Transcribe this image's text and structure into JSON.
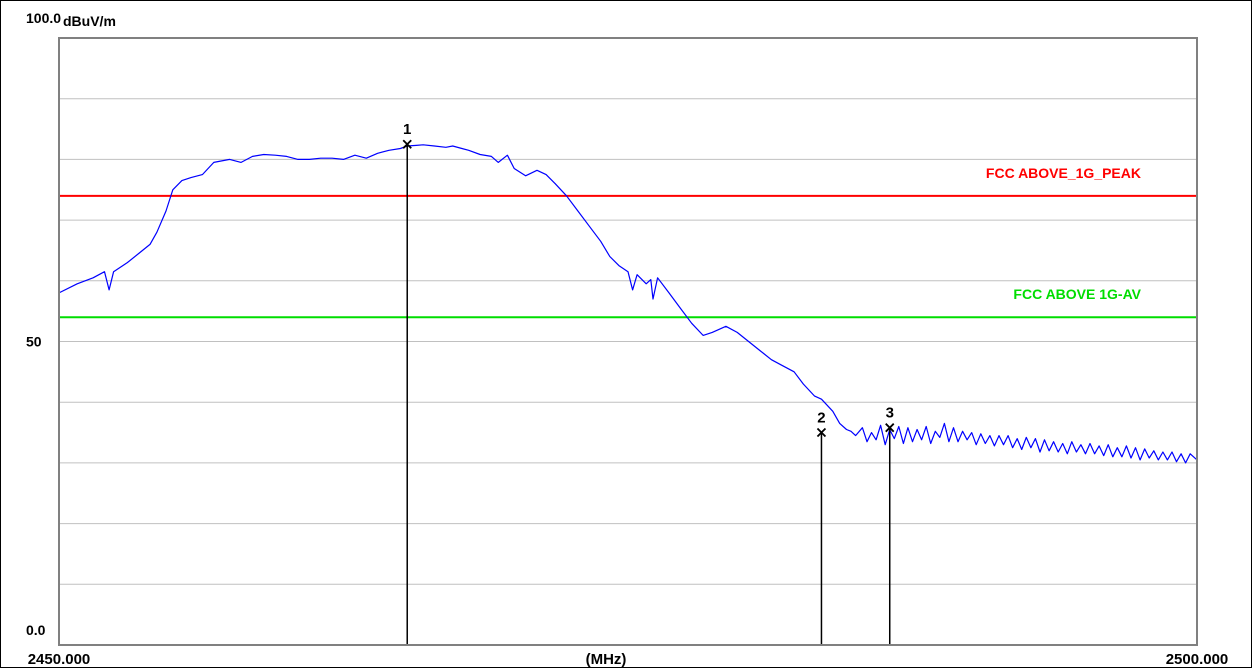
{
  "chart_data": {
    "type": "line",
    "title": "",
    "y_unit": "dBuV/m",
    "x_unit": "(MHz)",
    "xlim": [
      2450.0,
      2500.0
    ],
    "ylim": [
      0.0,
      100.0
    ],
    "y_tick_labels": [
      {
        "value": 100,
        "label": "100.0"
      },
      {
        "value": 50,
        "label": "50"
      },
      {
        "value": 0,
        "label": "0.0"
      }
    ],
    "x_tick_labels": [
      {
        "value": 2450.0,
        "label": "2450.000"
      },
      {
        "value": 2500.0,
        "label": "2500.000"
      }
    ],
    "grid": true,
    "grid_y_step": 10,
    "series": [
      {
        "color": "#0000ff",
        "points": [
          [
            2450.0,
            58
          ],
          [
            2450.8,
            59.5
          ],
          [
            2451.5,
            60.5
          ],
          [
            2452.0,
            61.5
          ],
          [
            2452.2,
            58.5
          ],
          [
            2452.4,
            61.5
          ],
          [
            2453.0,
            63
          ],
          [
            2453.5,
            64.5
          ],
          [
            2454.0,
            66
          ],
          [
            2454.3,
            68
          ],
          [
            2454.7,
            71.5
          ],
          [
            2455.0,
            75
          ],
          [
            2455.4,
            76.5
          ],
          [
            2455.8,
            77
          ],
          [
            2456.3,
            77.5
          ],
          [
            2456.8,
            79.5
          ],
          [
            2457.5,
            80
          ],
          [
            2458.0,
            79.5
          ],
          [
            2458.5,
            80.5
          ],
          [
            2459.0,
            80.8
          ],
          [
            2459.5,
            80.7
          ],
          [
            2460.0,
            80.5
          ],
          [
            2460.5,
            80
          ],
          [
            2461.0,
            80
          ],
          [
            2461.5,
            80.2
          ],
          [
            2462.0,
            80.2
          ],
          [
            2462.5,
            80
          ],
          [
            2463.0,
            80.7
          ],
          [
            2463.5,
            80.2
          ],
          [
            2464.0,
            81
          ],
          [
            2464.5,
            81.5
          ],
          [
            2465.0,
            81.8
          ],
          [
            2465.3,
            82.2
          ],
          [
            2465.7,
            82.3
          ],
          [
            2466.0,
            82.4
          ],
          [
            2466.5,
            82.2
          ],
          [
            2467.0,
            82
          ],
          [
            2467.3,
            82.2
          ],
          [
            2467.7,
            81.8
          ],
          [
            2468.0,
            81.5
          ],
          [
            2468.5,
            80.8
          ],
          [
            2469.0,
            80.5
          ],
          [
            2469.3,
            79.5
          ],
          [
            2469.7,
            80.7
          ],
          [
            2470.0,
            78.5
          ],
          [
            2470.5,
            77.3
          ],
          [
            2471.0,
            78.2
          ],
          [
            2471.4,
            77.5
          ],
          [
            2471.8,
            76
          ],
          [
            2472.3,
            74
          ],
          [
            2472.8,
            71.5
          ],
          [
            2473.3,
            69
          ],
          [
            2473.8,
            66.5
          ],
          [
            2474.2,
            64
          ],
          [
            2474.6,
            62.5
          ],
          [
            2475.0,
            61.5
          ],
          [
            2475.2,
            58.5
          ],
          [
            2475.4,
            61
          ],
          [
            2475.8,
            59.5
          ],
          [
            2476.0,
            60.2
          ],
          [
            2476.1,
            57
          ],
          [
            2476.3,
            60.5
          ],
          [
            2476.8,
            58
          ],
          [
            2477.3,
            55.5
          ],
          [
            2477.8,
            53
          ],
          [
            2478.3,
            51
          ],
          [
            2478.7,
            51.5
          ],
          [
            2479.3,
            52.5
          ],
          [
            2479.8,
            51.5
          ],
          [
            2480.3,
            50
          ],
          [
            2480.8,
            48.5
          ],
          [
            2481.3,
            47
          ],
          [
            2481.8,
            46
          ],
          [
            2482.3,
            45
          ],
          [
            2482.7,
            43
          ],
          [
            2483.2,
            41
          ],
          [
            2483.5,
            40.5
          ],
          [
            2484.0,
            38.5
          ],
          [
            2484.3,
            36.5
          ],
          [
            2484.6,
            35.5
          ],
          [
            2484.8,
            35.2
          ],
          [
            2485.0,
            34.5
          ],
          [
            2485.3,
            35.8
          ],
          [
            2485.5,
            33.5
          ],
          [
            2485.7,
            35
          ],
          [
            2485.9,
            33.8
          ],
          [
            2486.1,
            36.2
          ],
          [
            2486.3,
            33
          ],
          [
            2486.5,
            35.5
          ],
          [
            2486.7,
            34
          ],
          [
            2486.9,
            36
          ],
          [
            2487.1,
            33.2
          ],
          [
            2487.3,
            35.8
          ],
          [
            2487.5,
            33.5
          ],
          [
            2487.7,
            35.5
          ],
          [
            2487.9,
            33.8
          ],
          [
            2488.1,
            36
          ],
          [
            2488.3,
            33.2
          ],
          [
            2488.5,
            35.2
          ],
          [
            2488.7,
            34.2
          ],
          [
            2488.9,
            36.5
          ],
          [
            2489.1,
            33.5
          ],
          [
            2489.3,
            35.8
          ],
          [
            2489.5,
            33.5
          ],
          [
            2489.7,
            35.2
          ],
          [
            2489.9,
            33.8
          ],
          [
            2490.1,
            35
          ],
          [
            2490.3,
            33
          ],
          [
            2490.5,
            34.8
          ],
          [
            2490.7,
            33.2
          ],
          [
            2490.9,
            34.5
          ],
          [
            2491.1,
            32.8
          ],
          [
            2491.3,
            34.5
          ],
          [
            2491.5,
            33
          ],
          [
            2491.7,
            34.5
          ],
          [
            2491.9,
            32.5
          ],
          [
            2492.1,
            34
          ],
          [
            2492.3,
            32.2
          ],
          [
            2492.5,
            34.2
          ],
          [
            2492.7,
            32.5
          ],
          [
            2492.9,
            34
          ],
          [
            2493.1,
            31.8
          ],
          [
            2493.3,
            33.8
          ],
          [
            2493.5,
            32
          ],
          [
            2493.7,
            33.5
          ],
          [
            2493.9,
            31.8
          ],
          [
            2494.1,
            33.2
          ],
          [
            2494.3,
            31.5
          ],
          [
            2494.5,
            33.5
          ],
          [
            2494.7,
            31.8
          ],
          [
            2494.9,
            33
          ],
          [
            2495.1,
            31.5
          ],
          [
            2495.3,
            33.2
          ],
          [
            2495.5,
            31.5
          ],
          [
            2495.7,
            32.8
          ],
          [
            2495.9,
            31.2
          ],
          [
            2496.1,
            33
          ],
          [
            2496.3,
            31
          ],
          [
            2496.5,
            32.5
          ],
          [
            2496.7,
            31
          ],
          [
            2496.9,
            32.8
          ],
          [
            2497.1,
            30.8
          ],
          [
            2497.3,
            32.5
          ],
          [
            2497.5,
            30.5
          ],
          [
            2497.7,
            32.3
          ],
          [
            2497.9,
            30.8
          ],
          [
            2498.1,
            32
          ],
          [
            2498.3,
            30.5
          ],
          [
            2498.5,
            31.8
          ],
          [
            2498.7,
            30.5
          ],
          [
            2498.9,
            31.8
          ],
          [
            2499.1,
            30.2
          ],
          [
            2499.3,
            31.5
          ],
          [
            2499.5,
            30
          ],
          [
            2499.7,
            31.5
          ],
          [
            2500.0,
            30.5
          ]
        ]
      }
    ],
    "limit_lines": [
      {
        "label": "FCC ABOVE_1G_PEAK",
        "value": 74,
        "color": "#ff0000"
      },
      {
        "label": "FCC  ABOVE 1G-AV",
        "value": 54,
        "color": "#00dd00"
      }
    ],
    "markers": [
      {
        "label": "1",
        "x": 2465.3,
        "y": 82.5
      },
      {
        "label": "2",
        "x": 2483.5,
        "y": 35.0
      },
      {
        "label": "3",
        "x": 2486.5,
        "y": 35.8
      }
    ],
    "colors": {
      "frame": "#808080",
      "grid": "#c0c0c0",
      "marker": "#000000"
    }
  }
}
